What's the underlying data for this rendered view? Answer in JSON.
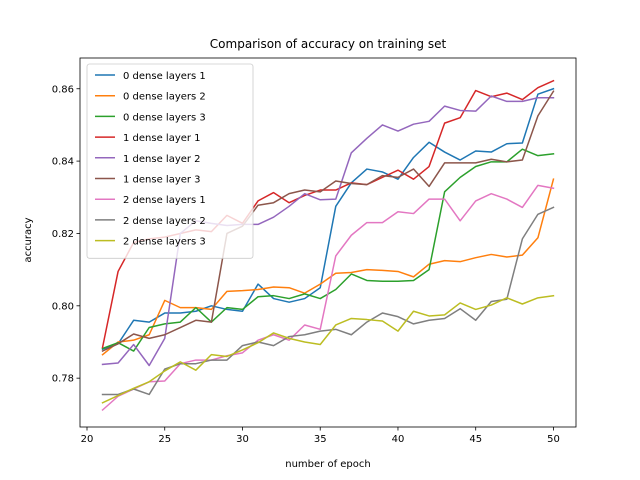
{
  "chart_data": {
    "type": "line",
    "title": "Comparison of accuracy on training set",
    "xlabel": "number of epoch",
    "ylabel": "accuracy",
    "xlim": [
      19.55,
      51.45
    ],
    "ylim": [
      0.7665,
      0.8685
    ],
    "xticks": [
      20,
      25,
      30,
      35,
      40,
      45,
      50
    ],
    "yticks": [
      0.78,
      0.8,
      0.82,
      0.84,
      0.86
    ],
    "xtick_labels": [
      "20",
      "25",
      "30",
      "35",
      "40",
      "45",
      "50"
    ],
    "ytick_labels": [
      "0.78",
      "0.80",
      "0.82",
      "0.84",
      "0.86"
    ],
    "legend_position": "upper-left",
    "grid": false,
    "x": [
      21,
      22,
      23,
      24,
      25,
      26,
      27,
      28,
      29,
      30,
      31,
      32,
      33,
      34,
      35,
      36,
      37,
      38,
      39,
      40,
      41,
      42,
      43,
      44,
      45,
      46,
      47,
      48,
      49,
      50
    ],
    "series": [
      {
        "name": "0 dense layers 1",
        "color": "#1f77b4",
        "values": [
          0.788,
          0.7895,
          0.796,
          0.7955,
          0.798,
          0.798,
          0.7985,
          0.8,
          0.799,
          0.7985,
          0.806,
          0.802,
          0.801,
          0.802,
          0.805,
          0.8275,
          0.834,
          0.8378,
          0.837,
          0.835,
          0.841,
          0.8452,
          0.8425,
          0.8403,
          0.8428,
          0.8425,
          0.8448,
          0.845,
          0.8585,
          0.86
        ]
      },
      {
        "name": "0 dense layers 2",
        "color": "#ff7f0e",
        "values": [
          0.7865,
          0.79,
          0.7905,
          0.792,
          0.8015,
          0.7995,
          0.7995,
          0.799,
          0.804,
          0.8042,
          0.8045,
          0.8052,
          0.805,
          0.8035,
          0.806,
          0.809,
          0.8092,
          0.81,
          0.8098,
          0.8095,
          0.808,
          0.8115,
          0.8125,
          0.8122,
          0.8133,
          0.8142,
          0.8135,
          0.814,
          0.8188,
          0.835
        ]
      },
      {
        "name": "0 dense layers 3",
        "color": "#2ca02c",
        "values": [
          0.7882,
          0.7898,
          0.7875,
          0.794,
          0.795,
          0.7955,
          0.7995,
          0.7955,
          0.7995,
          0.799,
          0.8025,
          0.8028,
          0.802,
          0.8033,
          0.802,
          0.8045,
          0.8088,
          0.807,
          0.8068,
          0.8068,
          0.807,
          0.81,
          0.8315,
          0.8355,
          0.8385,
          0.8398,
          0.8398,
          0.8433,
          0.8415,
          0.842
        ]
      },
      {
        "name": "1 dense layer 1",
        "color": "#d62728",
        "values": [
          0.7885,
          0.8095,
          0.8175,
          0.8185,
          0.819,
          0.82,
          0.821,
          0.8205,
          0.825,
          0.8228,
          0.829,
          0.8313,
          0.8285,
          0.8305,
          0.832,
          0.832,
          0.834,
          0.8335,
          0.8355,
          0.8375,
          0.835,
          0.8385,
          0.8505,
          0.852,
          0.8595,
          0.8578,
          0.8588,
          0.857,
          0.8603,
          0.8622
        ]
      },
      {
        "name": "1 dense layer 2",
        "color": "#9467bd",
        "values": [
          0.7838,
          0.7842,
          0.7893,
          0.7835,
          0.791,
          0.82,
          0.8235,
          0.8228,
          0.8222,
          0.8225,
          0.8225,
          0.8245,
          0.8275,
          0.831,
          0.8293,
          0.8295,
          0.8423,
          0.8463,
          0.85,
          0.8483,
          0.8502,
          0.851,
          0.8552,
          0.854,
          0.8538,
          0.858,
          0.8565,
          0.8565,
          0.8575,
          0.8575
        ]
      },
      {
        "name": "1 dense layer 3",
        "color": "#8c564b",
        "values": [
          0.7875,
          0.7895,
          0.7922,
          0.791,
          0.792,
          0.794,
          0.796,
          0.7955,
          0.82,
          0.822,
          0.8278,
          0.8285,
          0.831,
          0.832,
          0.8315,
          0.8345,
          0.8338,
          0.8335,
          0.836,
          0.8355,
          0.8378,
          0.833,
          0.8395,
          0.8395,
          0.8395,
          0.8405,
          0.8398,
          0.8403,
          0.8525,
          0.8593
        ]
      },
      {
        "name": "2 dense layers 1",
        "color": "#e377c2",
        "values": [
          0.7712,
          0.775,
          0.777,
          0.779,
          0.7792,
          0.784,
          0.785,
          0.785,
          0.7862,
          0.787,
          0.7905,
          0.792,
          0.7905,
          0.7947,
          0.7935,
          0.8138,
          0.8195,
          0.823,
          0.823,
          0.826,
          0.8255,
          0.8295,
          0.8295,
          0.8235,
          0.829,
          0.831,
          0.8295,
          0.8272,
          0.8333,
          0.8325
        ]
      },
      {
        "name": "2 dense layers 2",
        "color": "#7f7f7f",
        "values": [
          0.7755,
          0.7755,
          0.777,
          0.7755,
          0.7825,
          0.784,
          0.784,
          0.785,
          0.785,
          0.789,
          0.79,
          0.789,
          0.7915,
          0.792,
          0.793,
          0.7935,
          0.792,
          0.7955,
          0.798,
          0.797,
          0.795,
          0.796,
          0.7965,
          0.7992,
          0.796,
          0.8012,
          0.8018,
          0.8185,
          0.8253,
          0.8272
        ]
      },
      {
        "name": "2 dense layers 3",
        "color": "#bcbd22",
        "values": [
          0.7732,
          0.7752,
          0.7772,
          0.779,
          0.782,
          0.7845,
          0.7822,
          0.7865,
          0.786,
          0.7878,
          0.7898,
          0.7925,
          0.791,
          0.79,
          0.7893,
          0.7947,
          0.7965,
          0.7962,
          0.7958,
          0.793,
          0.7985,
          0.7972,
          0.7975,
          0.8008,
          0.799,
          0.8002,
          0.8022,
          0.8005,
          0.8022,
          0.8028
        ]
      }
    ]
  }
}
